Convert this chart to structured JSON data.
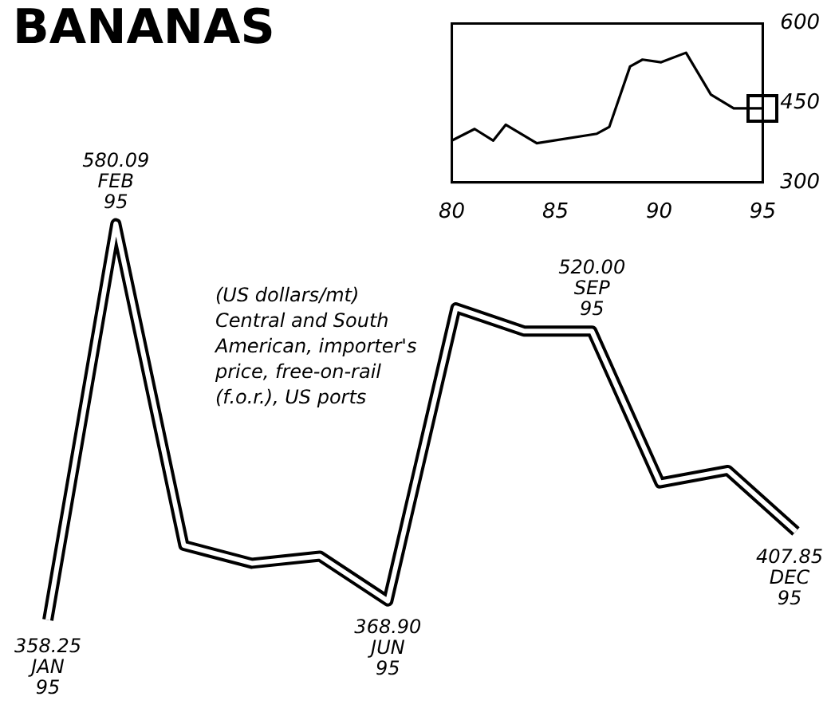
{
  "chart_data": [
    {
      "type": "line",
      "title": "BANANAS",
      "categories": [
        null,
        null,
        null,
        null,
        null,
        null,
        null,
        null,
        null,
        null,
        null,
        null
      ],
      "values": [
        358.25,
        580.09,
        400,
        390,
        394,
        368.9,
        533,
        520,
        520,
        435,
        442,
        407.85
      ],
      "value_labels": [
        "358.25\nJAN\n95",
        "580.09\nFEB\n95",
        null,
        null,
        null,
        "368.90\nJUN\n95",
        null,
        null,
        "520.00\nSEP\n95",
        null,
        null,
        "407.85\nDEC\n95"
      ],
      "color": "#000000",
      "marker": "none",
      "grid": false,
      "tick_labels": false,
      "legend": false,
      "annotations": [
        "(US dollars/mt)\nCentral and South\nAmerican, importer's\nprice, free-on-rail\n(f.o.r.), US ports"
      ]
    },
    {
      "type": "line",
      "x": [
        80,
        81.1,
        82,
        82.6,
        84.1,
        87,
        87.6,
        88.6,
        89.2,
        90.1,
        91.3,
        92.5,
        93.6,
        95
      ],
      "values": [
        379,
        401,
        379,
        409,
        374,
        392,
        405,
        519,
        532,
        527,
        545,
        466,
        440,
        440
      ],
      "color": "#000000",
      "marker": "none",
      "grid": false,
      "legend": false,
      "xlim": [
        80,
        95
      ],
      "xticks": [
        80,
        85,
        90,
        95
      ],
      "ylim": [
        300,
        600
      ],
      "yticks": [
        300,
        450,
        600
      ]
    }
  ]
}
